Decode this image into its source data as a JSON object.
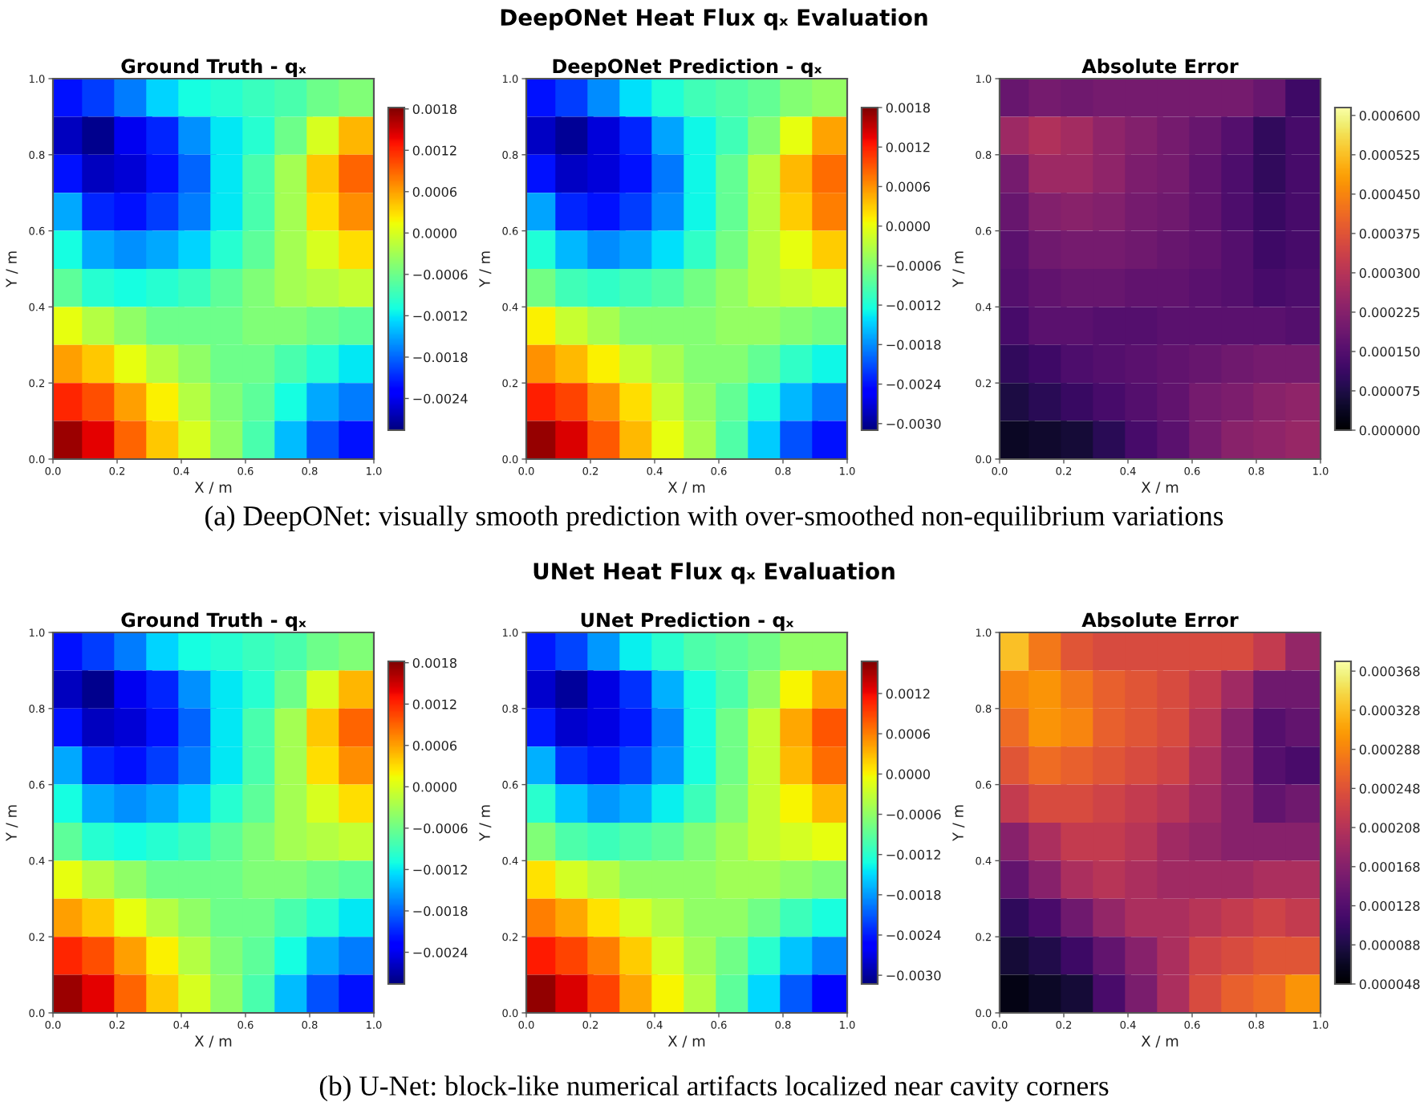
{
  "chart_data": [
    {
      "type": "scatter",
      "title": "Ground Truth - qₓ",
      "xlabel": "X / m",
      "ylabel": "Y / m",
      "annotations": [
        "DeepONet Heat Flux qₓ Evaluation",
        "(a) DeepONet: visually smooth prediction with over-smoothed non-equilibrium variations"
      ],
      "marker": "square",
      "xlim": [
        0,
        1
      ],
      "ylim": [
        0,
        1
      ],
      "xticks": [
        {
          "value": 0,
          "label": "0.0"
        },
        {
          "value": 0.2,
          "label": "0.2"
        },
        {
          "value": 0.4,
          "label": "0.4"
        },
        {
          "value": 0.6,
          "label": "0.6"
        },
        {
          "value": 0.8,
          "label": "0.8"
        },
        {
          "value": 1,
          "label": "1.0"
        }
      ],
      "yticks": [
        {
          "value": 0,
          "label": "0.0"
        },
        {
          "value": 0.2,
          "label": "0.2"
        },
        {
          "value": 0.4,
          "label": "0.4"
        },
        {
          "value": 0.6,
          "label": "0.6"
        },
        {
          "value": 0.8,
          "label": "0.8"
        },
        {
          "value": 1,
          "label": "1.0"
        }
      ],
      "clim": [
        -0.00286,
        0.00182
      ],
      "cticks": [
        {
          "value": 0.0018,
          "label": "0.0018"
        },
        {
          "value": 0.0012,
          "label": "0.0012"
        },
        {
          "value": 0.0006,
          "label": "0.0006"
        },
        {
          "value": 0,
          "label": "0.0000"
        },
        {
          "value": -0.0006,
          "label": "−0.0006"
        },
        {
          "value": -0.0012,
          "label": "−0.0012"
        },
        {
          "value": -0.0018,
          "label": "−0.0018"
        },
        {
          "value": -0.0024,
          "label": "−0.0024"
        }
      ],
      "x": [
        0.05,
        0.15,
        0.25,
        0.35,
        0.45,
        0.55,
        0.65,
        0.75,
        0.85,
        0.95,
        0.05,
        0.15,
        0.25,
        0.35,
        0.45,
        0.55,
        0.65,
        0.75,
        0.85,
        0.95,
        0.05,
        0.15,
        0.25,
        0.35,
        0.45,
        0.55,
        0.65,
        0.75,
        0.85,
        0.95,
        0.05,
        0.15,
        0.25,
        0.35,
        0.45,
        0.55,
        0.65,
        0.75,
        0.85,
        0.95,
        0.05,
        0.15,
        0.25,
        0.35,
        0.45,
        0.55,
        0.65,
        0.75,
        0.85,
        0.95,
        0.05,
        0.15,
        0.25,
        0.35,
        0.45,
        0.55,
        0.65,
        0.75,
        0.85,
        0.95,
        0.05,
        0.15,
        0.25,
        0.35,
        0.45,
        0.55,
        0.65,
        0.75,
        0.85,
        0.95,
        0.05,
        0.15,
        0.25,
        0.35,
        0.45,
        0.55,
        0.65,
        0.75,
        0.85,
        0.95,
        0.05,
        0.15,
        0.25,
        0.35,
        0.45,
        0.55,
        0.65,
        0.75,
        0.85,
        0.95,
        0.05,
        0.15,
        0.25,
        0.35,
        0.45,
        0.55,
        0.65,
        0.75,
        0.85,
        0.95
      ],
      "values": [
        0.95,
        0.95,
        0.95,
        0.95,
        0.95,
        0.95,
        0.95,
        0.95,
        0.95,
        0.95,
        0.85,
        0.85,
        0.85,
        0.85,
        0.85,
        0.85,
        0.85,
        0.85,
        0.85,
        0.85,
        0.75,
        0.75,
        0.75,
        0.75,
        0.75,
        0.75,
        0.75,
        0.75,
        0.75,
        0.75,
        0.65,
        0.65,
        0.65,
        0.65,
        0.65,
        0.65,
        0.65,
        0.65,
        0.65,
        0.65,
        0.55,
        0.55,
        0.55,
        0.55,
        0.55,
        0.55,
        0.55,
        0.55,
        0.55,
        0.55,
        0.45,
        0.45,
        0.45,
        0.45,
        0.45,
        0.45,
        0.45,
        0.45,
        0.45,
        0.45,
        0.35,
        0.35,
        0.35,
        0.35,
        0.35,
        0.35,
        0.35,
        0.35,
        0.35,
        0.35,
        0.25,
        0.25,
        0.25,
        0.25,
        0.25,
        0.25,
        0.25,
        0.25,
        0.25,
        0.25,
        0.15,
        0.15,
        0.15,
        0.15,
        0.15,
        0.15,
        0.15,
        0.15,
        0.15,
        0.15,
        0.05,
        0.05,
        0.05,
        0.05,
        0.05,
        0.05,
        0.05,
        0.05,
        0.05,
        0.05
      ],
      "cvalues": [
        -0.0022,
        -0.002,
        -0.0017,
        -0.0013,
        -0.0011,
        -0.001,
        -0.0009,
        -0.0008,
        -0.0006,
        -0.0005,
        -0.0026,
        -0.0028,
        -0.0024,
        -0.0021,
        -0.0016,
        -0.0012,
        -0.001,
        -0.0006,
        0.0,
        0.0005,
        -0.0022,
        -0.0026,
        -0.0025,
        -0.0022,
        -0.0018,
        -0.0012,
        -0.0008,
        -0.0003,
        0.0004,
        0.0009,
        -0.0015,
        -0.0021,
        -0.0022,
        -0.002,
        -0.0017,
        -0.0012,
        -0.0008,
        -0.0003,
        0.0003,
        0.0007,
        -0.0011,
        -0.0015,
        -0.0016,
        -0.0015,
        -0.0013,
        -0.001,
        -0.0007,
        -0.0003,
        0.0,
        0.0003,
        -0.0007,
        -0.001,
        -0.0011,
        -0.001,
        -0.0009,
        -0.0007,
        -0.0005,
        -0.0003,
        -0.0002,
        -0.0001,
        0.0001,
        -0.0002,
        -0.0004,
        -0.0006,
        -0.0006,
        -0.0006,
        -0.0005,
        -0.0005,
        -0.0006,
        -0.0007,
        0.0006,
        0.0004,
        0.0001,
        -0.0002,
        -0.0004,
        -0.0006,
        -0.0006,
        -0.0008,
        -0.001,
        -0.0012,
        0.0012,
        0.001,
        0.0006,
        0.0002,
        -0.0002,
        -0.0005,
        -0.0007,
        -0.0011,
        -0.0015,
        -0.0017,
        0.0017,
        0.0014,
        0.0009,
        0.0004,
        0.0,
        -0.0004,
        -0.0008,
        -0.0014,
        -0.0019,
        -0.0022
      ]
    },
    {
      "type": "scatter",
      "title": "DeepONet Prediction - qₓ",
      "xlabel": "X / m",
      "ylabel": "Y / m",
      "marker": "square",
      "xlim": [
        0,
        1
      ],
      "ylim": [
        0,
        1
      ],
      "xticks": [
        {
          "value": 0,
          "label": "0.0"
        },
        {
          "value": 0.2,
          "label": "0.2"
        },
        {
          "value": 0.4,
          "label": "0.4"
        },
        {
          "value": 0.6,
          "label": "0.6"
        },
        {
          "value": 0.8,
          "label": "0.8"
        },
        {
          "value": 1,
          "label": "1.0"
        }
      ],
      "yticks": [
        {
          "value": 0,
          "label": "0.0"
        },
        {
          "value": 0.2,
          "label": "0.2"
        },
        {
          "value": 0.4,
          "label": "0.4"
        },
        {
          "value": 0.6,
          "label": "0.6"
        },
        {
          "value": 0.8,
          "label": "0.8"
        },
        {
          "value": 1,
          "label": "1.0"
        }
      ],
      "clim": [
        -0.0031,
        0.0018
      ],
      "cticks": [
        {
          "value": 0.0018,
          "label": "0.0018"
        },
        {
          "value": 0.0012,
          "label": "0.0012"
        },
        {
          "value": 0.0006,
          "label": "0.0006"
        },
        {
          "value": 0,
          "label": "0.0000"
        },
        {
          "value": -0.0006,
          "label": "−0.0006"
        },
        {
          "value": -0.0012,
          "label": "−0.0012"
        },
        {
          "value": -0.0018,
          "label": "−0.0018"
        },
        {
          "value": -0.0024,
          "label": "−0.0024"
        },
        {
          "value": -0.003,
          "label": "−0.0030"
        }
      ],
      "x": [
        0.05,
        0.15,
        0.25,
        0.35,
        0.45,
        0.55,
        0.65,
        0.75,
        0.85,
        0.95,
        0.05,
        0.15,
        0.25,
        0.35,
        0.45,
        0.55,
        0.65,
        0.75,
        0.85,
        0.95,
        0.05,
        0.15,
        0.25,
        0.35,
        0.45,
        0.55,
        0.65,
        0.75,
        0.85,
        0.95,
        0.05,
        0.15,
        0.25,
        0.35,
        0.45,
        0.55,
        0.65,
        0.75,
        0.85,
        0.95,
        0.05,
        0.15,
        0.25,
        0.35,
        0.45,
        0.55,
        0.65,
        0.75,
        0.85,
        0.95,
        0.05,
        0.15,
        0.25,
        0.35,
        0.45,
        0.55,
        0.65,
        0.75,
        0.85,
        0.95,
        0.05,
        0.15,
        0.25,
        0.35,
        0.45,
        0.55,
        0.65,
        0.75,
        0.85,
        0.95,
        0.05,
        0.15,
        0.25,
        0.35,
        0.45,
        0.55,
        0.65,
        0.75,
        0.85,
        0.95,
        0.05,
        0.15,
        0.25,
        0.35,
        0.45,
        0.55,
        0.65,
        0.75,
        0.85,
        0.95,
        0.05,
        0.15,
        0.25,
        0.35,
        0.45,
        0.55,
        0.65,
        0.75,
        0.85,
        0.95
      ],
      "values": [
        0.95,
        0.95,
        0.95,
        0.95,
        0.95,
        0.95,
        0.95,
        0.95,
        0.95,
        0.95,
        0.85,
        0.85,
        0.85,
        0.85,
        0.85,
        0.85,
        0.85,
        0.85,
        0.85,
        0.85,
        0.75,
        0.75,
        0.75,
        0.75,
        0.75,
        0.75,
        0.75,
        0.75,
        0.75,
        0.75,
        0.65,
        0.65,
        0.65,
        0.65,
        0.65,
        0.65,
        0.65,
        0.65,
        0.65,
        0.65,
        0.55,
        0.55,
        0.55,
        0.55,
        0.55,
        0.55,
        0.55,
        0.55,
        0.55,
        0.55,
        0.45,
        0.45,
        0.45,
        0.45,
        0.45,
        0.45,
        0.45,
        0.45,
        0.45,
        0.45,
        0.35,
        0.35,
        0.35,
        0.35,
        0.35,
        0.35,
        0.35,
        0.35,
        0.35,
        0.35,
        0.25,
        0.25,
        0.25,
        0.25,
        0.25,
        0.25,
        0.25,
        0.25,
        0.25,
        0.25,
        0.15,
        0.15,
        0.15,
        0.15,
        0.15,
        0.15,
        0.15,
        0.15,
        0.15,
        0.15,
        0.05,
        0.05,
        0.05,
        0.05,
        0.05,
        0.05,
        0.05,
        0.05,
        0.05,
        0.05
      ],
      "cvalues": [
        -0.0024,
        -0.0022,
        -0.0018,
        -0.0014,
        -0.0012,
        -0.001,
        -0.0009,
        -0.0008,
        -0.0006,
        -0.0005,
        -0.0028,
        -0.003,
        -0.0027,
        -0.0023,
        -0.0017,
        -0.0013,
        -0.001,
        -0.0006,
        0.0,
        0.0005,
        -0.0024,
        -0.0028,
        -0.0027,
        -0.0024,
        -0.0019,
        -0.0013,
        -0.0008,
        -0.0003,
        0.0004,
        0.0008,
        -0.0017,
        -0.0023,
        -0.0024,
        -0.0022,
        -0.0018,
        -0.0013,
        -0.0008,
        -0.0003,
        0.0003,
        0.0007,
        -0.0012,
        -0.0016,
        -0.0018,
        -0.0017,
        -0.0014,
        -0.0011,
        -0.0007,
        -0.0003,
        0.0,
        0.0003,
        -0.0007,
        -0.001,
        -0.0011,
        -0.001,
        -0.0009,
        -0.0007,
        -0.0005,
        -0.0003,
        -0.0002,
        -0.0001,
        0.0001,
        -0.0002,
        -0.0004,
        -0.0006,
        -0.0006,
        -0.0006,
        -0.0005,
        -0.0005,
        -0.0006,
        -0.0007,
        0.0006,
        0.0004,
        0.0001,
        -0.0002,
        -0.0004,
        -0.0006,
        -0.0006,
        -0.0008,
        -0.0011,
        -0.0013,
        0.0012,
        0.001,
        0.0006,
        0.0002,
        -0.0002,
        -0.0005,
        -0.0008,
        -0.0012,
        -0.0016,
        -0.0019,
        0.0017,
        0.0014,
        0.0009,
        0.0004,
        0.0,
        -0.0004,
        -0.0009,
        -0.0015,
        -0.0021,
        -0.0024
      ]
    },
    {
      "type": "scatter",
      "title": "Absolute Error",
      "xlabel": "X / m",
      "ylabel": "Y / m",
      "marker": "square",
      "xlim": [
        0,
        1
      ],
      "ylim": [
        0,
        1
      ],
      "xticks": [
        {
          "value": 0,
          "label": "0.0"
        },
        {
          "value": 0.2,
          "label": "0.2"
        },
        {
          "value": 0.4,
          "label": "0.4"
        },
        {
          "value": 0.6,
          "label": "0.6"
        },
        {
          "value": 0.8,
          "label": "0.8"
        },
        {
          "value": 1,
          "label": "1.0"
        }
      ],
      "yticks": [
        {
          "value": 0,
          "label": "0.0"
        },
        {
          "value": 0.2,
          "label": "0.2"
        },
        {
          "value": 0.4,
          "label": "0.4"
        },
        {
          "value": 0.6,
          "label": "0.6"
        },
        {
          "value": 0.8,
          "label": "0.8"
        },
        {
          "value": 1,
          "label": "1.0"
        }
      ],
      "clim": [
        0,
        0.000615
      ],
      "cticks": [
        {
          "value": 0,
          "label": "0.000000"
        },
        {
          "value": 7.5e-05,
          "label": "0.000075"
        },
        {
          "value": 0.00015,
          "label": "0.000150"
        },
        {
          "value": 0.000225,
          "label": "0.000225"
        },
        {
          "value": 0.0003,
          "label": "0.000300"
        },
        {
          "value": 0.000375,
          "label": "0.000375"
        },
        {
          "value": 0.00045,
          "label": "0.000450"
        },
        {
          "value": 0.000525,
          "label": "0.000525"
        },
        {
          "value": 0.0006,
          "label": "0.000600"
        }
      ],
      "x": [
        0.05,
        0.15,
        0.25,
        0.35,
        0.45,
        0.55,
        0.65,
        0.75,
        0.85,
        0.95,
        0.05,
        0.15,
        0.25,
        0.35,
        0.45,
        0.55,
        0.65,
        0.75,
        0.85,
        0.95,
        0.05,
        0.15,
        0.25,
        0.35,
        0.45,
        0.55,
        0.65,
        0.75,
        0.85,
        0.95,
        0.05,
        0.15,
        0.25,
        0.35,
        0.45,
        0.55,
        0.65,
        0.75,
        0.85,
        0.95,
        0.05,
        0.15,
        0.25,
        0.35,
        0.45,
        0.55,
        0.65,
        0.75,
        0.85,
        0.95,
        0.05,
        0.15,
        0.25,
        0.35,
        0.45,
        0.55,
        0.65,
        0.75,
        0.85,
        0.95,
        0.05,
        0.15,
        0.25,
        0.35,
        0.45,
        0.55,
        0.65,
        0.75,
        0.85,
        0.95,
        0.05,
        0.15,
        0.25,
        0.35,
        0.45,
        0.55,
        0.65,
        0.75,
        0.85,
        0.95,
        0.05,
        0.15,
        0.25,
        0.35,
        0.45,
        0.55,
        0.65,
        0.75,
        0.85,
        0.95,
        0.05,
        0.15,
        0.25,
        0.35,
        0.45,
        0.55,
        0.65,
        0.75,
        0.85,
        0.95
      ],
      "values": [
        0.95,
        0.95,
        0.95,
        0.95,
        0.95,
        0.95,
        0.95,
        0.95,
        0.95,
        0.95,
        0.85,
        0.85,
        0.85,
        0.85,
        0.85,
        0.85,
        0.85,
        0.85,
        0.85,
        0.85,
        0.75,
        0.75,
        0.75,
        0.75,
        0.75,
        0.75,
        0.75,
        0.75,
        0.75,
        0.75,
        0.65,
        0.65,
        0.65,
        0.65,
        0.65,
        0.65,
        0.65,
        0.65,
        0.65,
        0.65,
        0.55,
        0.55,
        0.55,
        0.55,
        0.55,
        0.55,
        0.55,
        0.55,
        0.55,
        0.55,
        0.45,
        0.45,
        0.45,
        0.45,
        0.45,
        0.45,
        0.45,
        0.45,
        0.45,
        0.45,
        0.35,
        0.35,
        0.35,
        0.35,
        0.35,
        0.35,
        0.35,
        0.35,
        0.35,
        0.35,
        0.25,
        0.25,
        0.25,
        0.25,
        0.25,
        0.25,
        0.25,
        0.25,
        0.25,
        0.25,
        0.15,
        0.15,
        0.15,
        0.15,
        0.15,
        0.15,
        0.15,
        0.15,
        0.15,
        0.15,
        0.05,
        0.05,
        0.05,
        0.05,
        0.05,
        0.05,
        0.05,
        0.05,
        0.05,
        0.05
      ],
      "cvalues": [
        0.00018,
        0.0002,
        0.00019,
        0.0002,
        0.0002,
        0.0002,
        0.0002,
        0.0002,
        0.00018,
        0.00012,
        0.00026,
        0.00029,
        0.00027,
        0.00024,
        0.00022,
        0.0002,
        0.00018,
        0.00015,
        0.0001,
        0.00013,
        0.0002,
        0.00026,
        0.00026,
        0.00024,
        0.00021,
        0.0002,
        0.00017,
        0.00014,
        0.0001,
        0.00013,
        0.00018,
        0.00022,
        0.00023,
        0.00022,
        0.0002,
        0.00019,
        0.00017,
        0.00014,
        0.00011,
        0.00013,
        0.00016,
        0.00019,
        0.0002,
        0.0002,
        0.00019,
        0.00018,
        0.00017,
        0.00015,
        0.00012,
        0.00013,
        0.00015,
        0.00017,
        0.00018,
        0.00018,
        0.00017,
        0.00017,
        0.00016,
        0.00015,
        0.00013,
        0.00014,
        0.00013,
        0.00016,
        0.00016,
        0.00015,
        0.00015,
        0.00016,
        0.00016,
        0.00016,
        0.00016,
        0.00015,
        0.0001,
        0.00012,
        0.00014,
        0.00015,
        0.00016,
        0.00017,
        0.00018,
        0.00019,
        0.0002,
        0.0002,
        7e-05,
        9e-05,
        0.00011,
        0.00013,
        0.00015,
        0.00017,
        0.0002,
        0.00021,
        0.00023,
        0.00024,
        4e-05,
        5e-05,
        6e-05,
        9e-05,
        0.00013,
        0.00016,
        0.0002,
        0.00023,
        0.00024,
        0.00025
      ]
    },
    {
      "type": "scatter",
      "title": "Ground Truth - qₓ",
      "xlabel": "X / m",
      "ylabel": "Y / m",
      "annotations": [
        "UNet Heat Flux qₓ Evaluation",
        "(b) U-Net: block-like numerical artifacts localized near cavity corners"
      ],
      "marker": "square",
      "xlim": [
        0,
        1
      ],
      "ylim": [
        0,
        1
      ],
      "xticks": [
        {
          "value": 0,
          "label": "0.0"
        },
        {
          "value": 0.2,
          "label": "0.2"
        },
        {
          "value": 0.4,
          "label": "0.4"
        },
        {
          "value": 0.6,
          "label": "0.6"
        },
        {
          "value": 0.8,
          "label": "0.8"
        },
        {
          "value": 1,
          "label": "1.0"
        }
      ],
      "yticks": [
        {
          "value": 0,
          "label": "0.0"
        },
        {
          "value": 0.2,
          "label": "0.2"
        },
        {
          "value": 0.4,
          "label": "0.4"
        },
        {
          "value": 0.6,
          "label": "0.6"
        },
        {
          "value": 0.8,
          "label": "0.8"
        },
        {
          "value": 1,
          "label": "1.0"
        }
      ],
      "clim": [
        -0.00286,
        0.00182
      ],
      "cticks": [
        {
          "value": 0.0018,
          "label": "0.0018"
        },
        {
          "value": 0.0012,
          "label": "0.0012"
        },
        {
          "value": 0.0006,
          "label": "0.0006"
        },
        {
          "value": 0,
          "label": "0.0000"
        },
        {
          "value": -0.0006,
          "label": "−0.0006"
        },
        {
          "value": -0.0012,
          "label": "−0.0012"
        },
        {
          "value": -0.0018,
          "label": "−0.0018"
        },
        {
          "value": -0.0024,
          "label": "−0.0024"
        }
      ],
      "x": [
        0.05,
        0.15,
        0.25,
        0.35,
        0.45,
        0.55,
        0.65,
        0.75,
        0.85,
        0.95,
        0.05,
        0.15,
        0.25,
        0.35,
        0.45,
        0.55,
        0.65,
        0.75,
        0.85,
        0.95,
        0.05,
        0.15,
        0.25,
        0.35,
        0.45,
        0.55,
        0.65,
        0.75,
        0.85,
        0.95,
        0.05,
        0.15,
        0.25,
        0.35,
        0.45,
        0.55,
        0.65,
        0.75,
        0.85,
        0.95,
        0.05,
        0.15,
        0.25,
        0.35,
        0.45,
        0.55,
        0.65,
        0.75,
        0.85,
        0.95,
        0.05,
        0.15,
        0.25,
        0.35,
        0.45,
        0.55,
        0.65,
        0.75,
        0.85,
        0.95,
        0.05,
        0.15,
        0.25,
        0.35,
        0.45,
        0.55,
        0.65,
        0.75,
        0.85,
        0.95,
        0.05,
        0.15,
        0.25,
        0.35,
        0.45,
        0.55,
        0.65,
        0.75,
        0.85,
        0.95,
        0.05,
        0.15,
        0.25,
        0.35,
        0.45,
        0.55,
        0.65,
        0.75,
        0.85,
        0.95,
        0.05,
        0.15,
        0.25,
        0.35,
        0.45,
        0.55,
        0.65,
        0.75,
        0.85,
        0.95
      ],
      "values": [
        0.95,
        0.95,
        0.95,
        0.95,
        0.95,
        0.95,
        0.95,
        0.95,
        0.95,
        0.95,
        0.85,
        0.85,
        0.85,
        0.85,
        0.85,
        0.85,
        0.85,
        0.85,
        0.85,
        0.85,
        0.75,
        0.75,
        0.75,
        0.75,
        0.75,
        0.75,
        0.75,
        0.75,
        0.75,
        0.75,
        0.65,
        0.65,
        0.65,
        0.65,
        0.65,
        0.65,
        0.65,
        0.65,
        0.65,
        0.65,
        0.55,
        0.55,
        0.55,
        0.55,
        0.55,
        0.55,
        0.55,
        0.55,
        0.55,
        0.55,
        0.45,
        0.45,
        0.45,
        0.45,
        0.45,
        0.45,
        0.45,
        0.45,
        0.45,
        0.45,
        0.35,
        0.35,
        0.35,
        0.35,
        0.35,
        0.35,
        0.35,
        0.35,
        0.35,
        0.35,
        0.25,
        0.25,
        0.25,
        0.25,
        0.25,
        0.25,
        0.25,
        0.25,
        0.25,
        0.25,
        0.15,
        0.15,
        0.15,
        0.15,
        0.15,
        0.15,
        0.15,
        0.15,
        0.15,
        0.15,
        0.05,
        0.05,
        0.05,
        0.05,
        0.05,
        0.05,
        0.05,
        0.05,
        0.05,
        0.05
      ],
      "cvalues": [
        -0.0022,
        -0.002,
        -0.0017,
        -0.0013,
        -0.0011,
        -0.001,
        -0.0009,
        -0.0008,
        -0.0006,
        -0.0005,
        -0.0026,
        -0.0028,
        -0.0024,
        -0.0021,
        -0.0016,
        -0.0012,
        -0.001,
        -0.0006,
        0.0,
        0.0005,
        -0.0022,
        -0.0026,
        -0.0025,
        -0.0022,
        -0.0018,
        -0.0012,
        -0.0008,
        -0.0003,
        0.0004,
        0.0009,
        -0.0015,
        -0.0021,
        -0.0022,
        -0.002,
        -0.0017,
        -0.0012,
        -0.0008,
        -0.0003,
        0.0003,
        0.0007,
        -0.0011,
        -0.0015,
        -0.0016,
        -0.0015,
        -0.0013,
        -0.001,
        -0.0007,
        -0.0003,
        0.0,
        0.0003,
        -0.0007,
        -0.001,
        -0.0011,
        -0.001,
        -0.0009,
        -0.0007,
        -0.0005,
        -0.0003,
        -0.0002,
        -0.0001,
        0.0001,
        -0.0002,
        -0.0004,
        -0.0006,
        -0.0006,
        -0.0006,
        -0.0005,
        -0.0005,
        -0.0006,
        -0.0007,
        0.0006,
        0.0004,
        0.0001,
        -0.0002,
        -0.0004,
        -0.0006,
        -0.0006,
        -0.0008,
        -0.001,
        -0.0012,
        0.0012,
        0.001,
        0.0006,
        0.0002,
        -0.0002,
        -0.0005,
        -0.0007,
        -0.0011,
        -0.0015,
        -0.0017,
        0.0017,
        0.0014,
        0.0009,
        0.0004,
        0.0,
        -0.0004,
        -0.0008,
        -0.0014,
        -0.0019,
        -0.0022
      ]
    },
    {
      "type": "scatter",
      "title": "UNet Prediction - qₓ",
      "xlabel": "X / m",
      "ylabel": "Y / m",
      "marker": "square",
      "xlim": [
        0,
        1
      ],
      "ylim": [
        0,
        1
      ],
      "xticks": [
        {
          "value": 0,
          "label": "0.0"
        },
        {
          "value": 0.2,
          "label": "0.2"
        },
        {
          "value": 0.4,
          "label": "0.4"
        },
        {
          "value": 0.6,
          "label": "0.6"
        },
        {
          "value": 0.8,
          "label": "0.8"
        },
        {
          "value": 1,
          "label": "1.0"
        }
      ],
      "yticks": [
        {
          "value": 0,
          "label": "0.0"
        },
        {
          "value": 0.2,
          "label": "0.2"
        },
        {
          "value": 0.4,
          "label": "0.4"
        },
        {
          "value": 0.6,
          "label": "0.6"
        },
        {
          "value": 0.8,
          "label": "0.8"
        },
        {
          "value": 1,
          "label": "1.0"
        }
      ],
      "clim": [
        -0.00313,
        0.00168
      ],
      "cticks": [
        {
          "value": 0.0012,
          "label": "0.0012"
        },
        {
          "value": 0.0006,
          "label": "0.0006"
        },
        {
          "value": 0,
          "label": "0.0000"
        },
        {
          "value": -0.0006,
          "label": "−0.0006"
        },
        {
          "value": -0.0012,
          "label": "−0.0012"
        },
        {
          "value": -0.0018,
          "label": "−0.0018"
        },
        {
          "value": -0.0024,
          "label": "−0.0024"
        },
        {
          "value": -0.003,
          "label": "−0.0030"
        }
      ],
      "x": [
        0.05,
        0.15,
        0.25,
        0.35,
        0.45,
        0.55,
        0.65,
        0.75,
        0.85,
        0.95,
        0.05,
        0.15,
        0.25,
        0.35,
        0.45,
        0.55,
        0.65,
        0.75,
        0.85,
        0.95,
        0.05,
        0.15,
        0.25,
        0.35,
        0.45,
        0.55,
        0.65,
        0.75,
        0.85,
        0.95,
        0.05,
        0.15,
        0.25,
        0.35,
        0.45,
        0.55,
        0.65,
        0.75,
        0.85,
        0.95,
        0.05,
        0.15,
        0.25,
        0.35,
        0.45,
        0.55,
        0.65,
        0.75,
        0.85,
        0.95,
        0.05,
        0.15,
        0.25,
        0.35,
        0.45,
        0.55,
        0.65,
        0.75,
        0.85,
        0.95,
        0.05,
        0.15,
        0.25,
        0.35,
        0.45,
        0.55,
        0.65,
        0.75,
        0.85,
        0.95,
        0.05,
        0.15,
        0.25,
        0.35,
        0.45,
        0.55,
        0.65,
        0.75,
        0.85,
        0.95,
        0.05,
        0.15,
        0.25,
        0.35,
        0.45,
        0.55,
        0.65,
        0.75,
        0.85,
        0.95,
        0.05,
        0.15,
        0.25,
        0.35,
        0.45,
        0.55,
        0.65,
        0.75,
        0.85,
        0.95
      ],
      "values": [
        0.95,
        0.95,
        0.95,
        0.95,
        0.95,
        0.95,
        0.95,
        0.95,
        0.95,
        0.95,
        0.85,
        0.85,
        0.85,
        0.85,
        0.85,
        0.85,
        0.85,
        0.85,
        0.85,
        0.85,
        0.75,
        0.75,
        0.75,
        0.75,
        0.75,
        0.75,
        0.75,
        0.75,
        0.75,
        0.75,
        0.65,
        0.65,
        0.65,
        0.65,
        0.65,
        0.65,
        0.65,
        0.65,
        0.65,
        0.65,
        0.55,
        0.55,
        0.55,
        0.55,
        0.55,
        0.55,
        0.55,
        0.55,
        0.55,
        0.55,
        0.45,
        0.45,
        0.45,
        0.45,
        0.45,
        0.45,
        0.45,
        0.45,
        0.45,
        0.45,
        0.35,
        0.35,
        0.35,
        0.35,
        0.35,
        0.35,
        0.35,
        0.35,
        0.35,
        0.35,
        0.25,
        0.25,
        0.25,
        0.25,
        0.25,
        0.25,
        0.25,
        0.25,
        0.25,
        0.25,
        0.15,
        0.15,
        0.15,
        0.15,
        0.15,
        0.15,
        0.15,
        0.15,
        0.15,
        0.15,
        0.05,
        0.05,
        0.05,
        0.05,
        0.05,
        0.05,
        0.05,
        0.05,
        0.05,
        0.05
      ],
      "cvalues": [
        -0.0024,
        -0.0022,
        -0.0018,
        -0.0014,
        -0.0012,
        -0.001,
        -0.0009,
        -0.0008,
        -0.0006,
        -0.0006,
        -0.0028,
        -0.003,
        -0.0027,
        -0.0023,
        -0.0017,
        -0.0013,
        -0.001,
        -0.0006,
        0.0,
        0.0004,
        -0.0024,
        -0.0028,
        -0.0027,
        -0.0024,
        -0.0019,
        -0.0013,
        -0.0008,
        -0.0003,
        0.0004,
        0.0008,
        -0.0017,
        -0.0023,
        -0.0024,
        -0.0022,
        -0.0018,
        -0.0013,
        -0.0008,
        -0.0003,
        0.0003,
        0.0007,
        -0.0012,
        -0.0016,
        -0.0018,
        -0.0017,
        -0.0014,
        -0.0011,
        -0.0007,
        -0.0003,
        0.0,
        0.0003,
        -0.0007,
        -0.001,
        -0.0011,
        -0.001,
        -0.0009,
        -0.0007,
        -0.0005,
        -0.0003,
        -0.0002,
        -0.0001,
        0.0001,
        -0.0002,
        -0.0004,
        -0.0006,
        -0.0006,
        -0.0006,
        -0.0005,
        -0.0005,
        -0.0006,
        -0.0007,
        0.0006,
        0.0004,
        0.0001,
        -0.0002,
        -0.0004,
        -0.0006,
        -0.0006,
        -0.0008,
        -0.0011,
        -0.0013,
        0.0011,
        0.0009,
        0.0006,
        0.0002,
        -0.0002,
        -0.0005,
        -0.0008,
        -0.0012,
        -0.0016,
        -0.0019,
        0.0016,
        0.0013,
        0.0009,
        0.0004,
        0.0,
        -0.0004,
        -0.0009,
        -0.0015,
        -0.0021,
        -0.0025
      ]
    },
    {
      "type": "scatter",
      "title": "Absolute Error",
      "xlabel": "X / m",
      "ylabel": "Y / m",
      "marker": "square",
      "xlim": [
        0,
        1
      ],
      "ylim": [
        0,
        1
      ],
      "xticks": [
        {
          "value": 0,
          "label": "0.0"
        },
        {
          "value": 0.2,
          "label": "0.2"
        },
        {
          "value": 0.4,
          "label": "0.4"
        },
        {
          "value": 0.6,
          "label": "0.6"
        },
        {
          "value": 0.8,
          "label": "0.8"
        },
        {
          "value": 1,
          "label": "1.0"
        }
      ],
      "yticks": [
        {
          "value": 0,
          "label": "0.0"
        },
        {
          "value": 0.2,
          "label": "0.2"
        },
        {
          "value": 0.4,
          "label": "0.4"
        },
        {
          "value": 0.6,
          "label": "0.6"
        },
        {
          "value": 0.8,
          "label": "0.8"
        },
        {
          "value": 1,
          "label": "1.0"
        }
      ],
      "clim": [
        4.8e-05,
        0.000378
      ],
      "cticks": [
        {
          "value": 4.8e-05,
          "label": "0.000048"
        },
        {
          "value": 8.8e-05,
          "label": "0.000088"
        },
        {
          "value": 0.000128,
          "label": "0.000128"
        },
        {
          "value": 0.000168,
          "label": "0.000168"
        },
        {
          "value": 0.000208,
          "label": "0.000208"
        },
        {
          "value": 0.000248,
          "label": "0.000248"
        },
        {
          "value": 0.000288,
          "label": "0.000288"
        },
        {
          "value": 0.000328,
          "label": "0.000328"
        },
        {
          "value": 0.000368,
          "label": "0.000368"
        }
      ],
      "x": [
        0.05,
        0.15,
        0.25,
        0.35,
        0.45,
        0.55,
        0.65,
        0.75,
        0.85,
        0.95,
        0.05,
        0.15,
        0.25,
        0.35,
        0.45,
        0.55,
        0.65,
        0.75,
        0.85,
        0.95,
        0.05,
        0.15,
        0.25,
        0.35,
        0.45,
        0.55,
        0.65,
        0.75,
        0.85,
        0.95,
        0.05,
        0.15,
        0.25,
        0.35,
        0.45,
        0.55,
        0.65,
        0.75,
        0.85,
        0.95,
        0.05,
        0.15,
        0.25,
        0.35,
        0.45,
        0.55,
        0.65,
        0.75,
        0.85,
        0.95,
        0.05,
        0.15,
        0.25,
        0.35,
        0.45,
        0.55,
        0.65,
        0.75,
        0.85,
        0.95,
        0.05,
        0.15,
        0.25,
        0.35,
        0.45,
        0.55,
        0.65,
        0.75,
        0.85,
        0.95,
        0.05,
        0.15,
        0.25,
        0.35,
        0.45,
        0.55,
        0.65,
        0.75,
        0.85,
        0.95,
        0.05,
        0.15,
        0.25,
        0.35,
        0.45,
        0.55,
        0.65,
        0.75,
        0.85,
        0.95,
        0.05,
        0.15,
        0.25,
        0.35,
        0.45,
        0.55,
        0.65,
        0.75,
        0.85,
        0.95
      ],
      "values": [
        0.95,
        0.95,
        0.95,
        0.95,
        0.95,
        0.95,
        0.95,
        0.95,
        0.95,
        0.95,
        0.85,
        0.85,
        0.85,
        0.85,
        0.85,
        0.85,
        0.85,
        0.85,
        0.85,
        0.85,
        0.75,
        0.75,
        0.75,
        0.75,
        0.75,
        0.75,
        0.75,
        0.75,
        0.75,
        0.75,
        0.65,
        0.65,
        0.65,
        0.65,
        0.65,
        0.65,
        0.65,
        0.65,
        0.65,
        0.65,
        0.55,
        0.55,
        0.55,
        0.55,
        0.55,
        0.55,
        0.55,
        0.55,
        0.55,
        0.55,
        0.45,
        0.45,
        0.45,
        0.45,
        0.45,
        0.45,
        0.45,
        0.45,
        0.45,
        0.45,
        0.35,
        0.35,
        0.35,
        0.35,
        0.35,
        0.35,
        0.35,
        0.35,
        0.35,
        0.35,
        0.25,
        0.25,
        0.25,
        0.25,
        0.25,
        0.25,
        0.25,
        0.25,
        0.25,
        0.25,
        0.15,
        0.15,
        0.15,
        0.15,
        0.15,
        0.15,
        0.15,
        0.15,
        0.15,
        0.15,
        0.05,
        0.05,
        0.05,
        0.05,
        0.05,
        0.05,
        0.05,
        0.05,
        0.05,
        0.05
      ],
      "cvalues": [
        0.00033,
        0.00028,
        0.00025,
        0.00024,
        0.00024,
        0.00024,
        0.00024,
        0.00024,
        0.00022,
        0.00018,
        0.00029,
        0.0003,
        0.00028,
        0.00026,
        0.00025,
        0.00024,
        0.00022,
        0.00019,
        0.00015,
        0.00015,
        0.00027,
        0.0003,
        0.00029,
        0.00026,
        0.00025,
        0.00024,
        0.00021,
        0.00017,
        0.00013,
        0.00014,
        0.00025,
        0.00027,
        0.00026,
        0.00025,
        0.00024,
        0.00023,
        0.0002,
        0.00017,
        0.00013,
        0.00012,
        0.00022,
        0.00024,
        0.00024,
        0.00023,
        0.00022,
        0.00021,
        0.00019,
        0.00017,
        0.00014,
        0.00015,
        0.00017,
        0.0002,
        0.00022,
        0.00022,
        0.00021,
        0.00019,
        0.00018,
        0.00017,
        0.00017,
        0.00017,
        0.00014,
        0.00017,
        0.0002,
        0.00021,
        0.0002,
        0.00019,
        0.00019,
        0.00019,
        0.0002,
        0.0002,
        0.0001,
        0.00012,
        0.00015,
        0.00018,
        0.0002,
        0.0002,
        0.00021,
        0.00022,
        0.00023,
        0.00022,
        8e-05,
        9e-05,
        0.00011,
        0.00014,
        0.00017,
        0.0002,
        0.00023,
        0.00024,
        0.00025,
        0.00025,
        6e-05,
        7e-05,
        8e-05,
        0.00012,
        0.00016,
        0.0002,
        0.00024,
        0.00026,
        0.00027,
        0.0003
      ]
    }
  ]
}
